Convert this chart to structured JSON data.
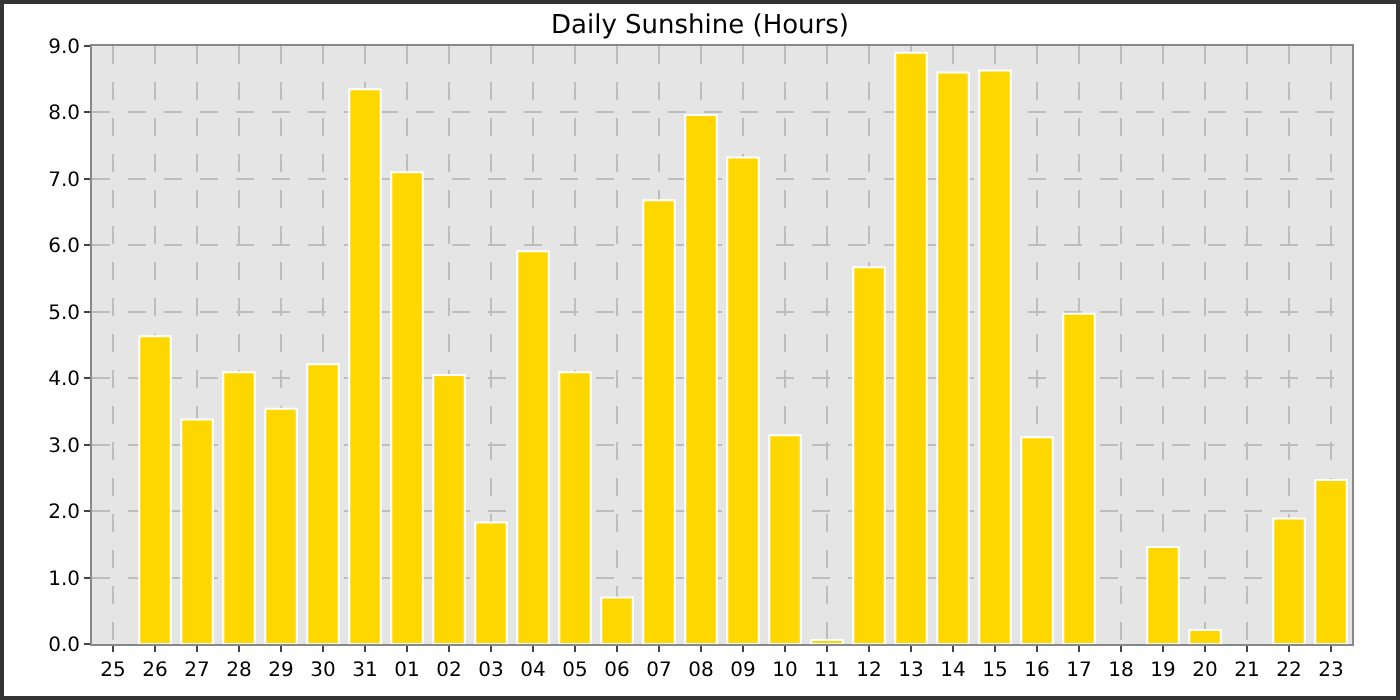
{
  "chart_data": {
    "type": "bar",
    "title": "Daily Sunshine (Hours)",
    "categories": [
      "25",
      "26",
      "27",
      "28",
      "29",
      "30",
      "31",
      "01",
      "02",
      "03",
      "04",
      "05",
      "06",
      "07",
      "08",
      "09",
      "10",
      "11",
      "12",
      "13",
      "14",
      "15",
      "16",
      "17",
      "18",
      "19",
      "20",
      "21",
      "22",
      "23"
    ],
    "values": [
      null,
      4.63,
      3.38,
      4.09,
      3.54,
      4.21,
      8.35,
      7.1,
      4.05,
      1.83,
      5.91,
      4.09,
      0.7,
      6.68,
      7.96,
      7.32,
      3.14,
      0.06,
      5.67,
      8.9,
      8.6,
      8.63,
      3.11,
      4.97,
      null,
      1.46,
      0.21,
      null,
      1.89,
      2.47
    ],
    "color": "#ffd700",
    "ylim": [
      0,
      9
    ],
    "yticks": [
      {
        "value": 0,
        "label": "0.0"
      },
      {
        "value": 1,
        "label": "1.0"
      },
      {
        "value": 2,
        "label": "2.0"
      },
      {
        "value": 3,
        "label": "3.0"
      },
      {
        "value": 4,
        "label": "4.0"
      },
      {
        "value": 5,
        "label": "5.0"
      },
      {
        "value": 6,
        "label": "6.0"
      },
      {
        "value": 7,
        "label": "7.0"
      },
      {
        "value": 8,
        "label": "8.0"
      },
      {
        "value": 9,
        "label": "9.0"
      }
    ],
    "grid": true
  }
}
